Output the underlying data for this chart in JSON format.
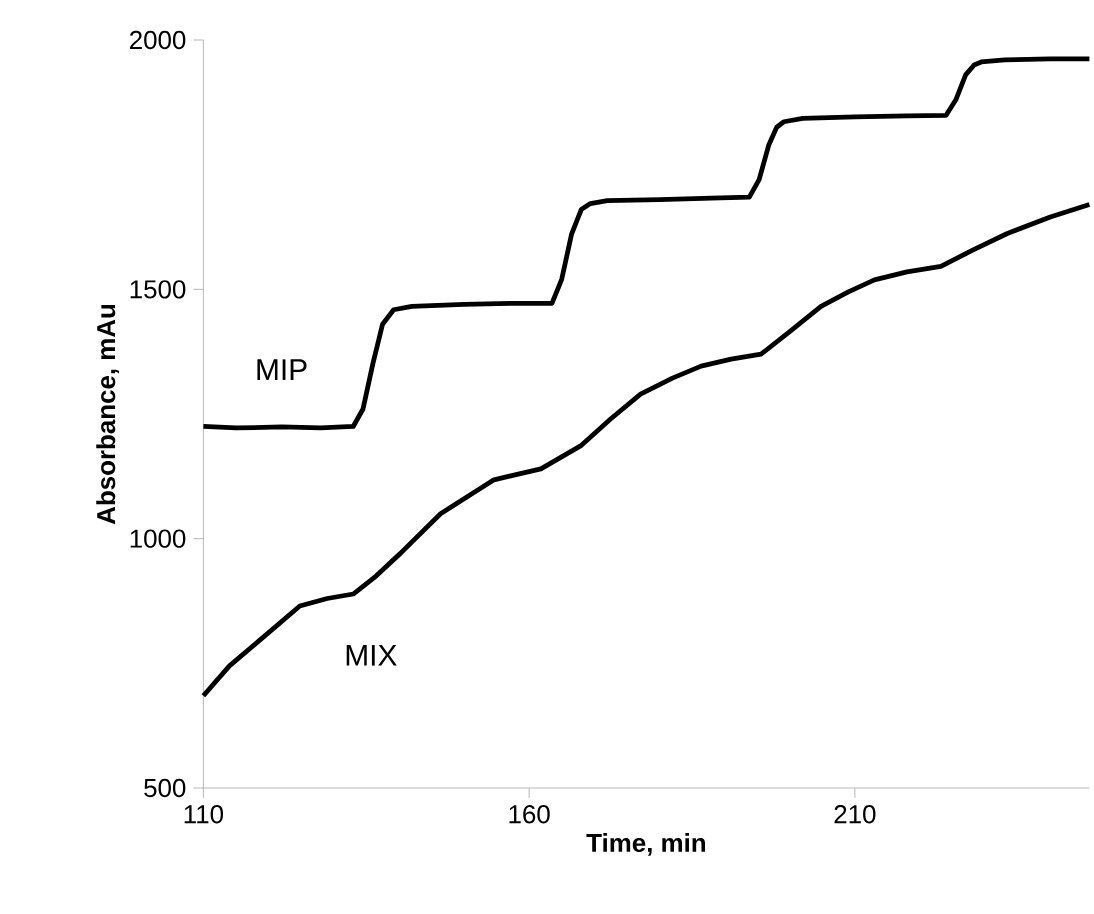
{
  "chart_data": {
    "type": "line",
    "xlabel": "Time, min",
    "ylabel": "Absorbance, mAu",
    "xlim": [
      110,
      246
    ],
    "ylim": [
      500,
      2000
    ],
    "xticks": [
      110,
      160,
      210
    ],
    "yticks": [
      500,
      1000,
      1500,
      2000
    ],
    "grid": false,
    "legend": false,
    "marker": "none",
    "line_style": "solid",
    "series": [
      {
        "name": "MIP",
        "color": "#000000",
        "x": [
          110,
          115,
          122,
          128,
          133,
          134.5,
          136,
          137.5,
          139.2,
          142,
          150,
          158,
          163.5,
          165,
          166.5,
          168,
          169.4,
          172,
          180,
          188,
          193.8,
          195.3,
          196.8,
          198,
          199.1,
          202,
          210,
          218,
          224,
          225.5,
          227,
          228.3,
          229.4,
          233,
          240,
          246
        ],
        "values": [
          1225,
          1222,
          1224,
          1222,
          1225,
          1260,
          1350,
          1430,
          1459,
          1466,
          1470,
          1472,
          1472,
          1520,
          1610,
          1660,
          1672,
          1678,
          1680,
          1683,
          1685,
          1720,
          1790,
          1825,
          1836,
          1843,
          1846,
          1848,
          1849,
          1880,
          1930,
          1950,
          1956,
          1960,
          1962,
          1962
        ]
      },
      {
        "name": "MIX",
        "color": "#000000",
        "x": [
          110,
          114,
          118.7,
          124.8,
          129,
          133,
          136.5,
          140.2,
          146.4,
          154.6,
          161.8,
          167.9,
          172.5,
          177.1,
          182,
          186.4,
          191,
          195.6,
          200,
          204.8,
          209,
          213,
          218,
          223.2,
          228,
          233.4,
          240,
          246
        ],
        "values": [
          685,
          745,
          797,
          865,
          880,
          889,
          925,
          970,
          1050,
          1118,
          1140,
          1186,
          1240,
          1290,
          1322,
          1346,
          1360,
          1370,
          1415,
          1466,
          1495,
          1519,
          1535,
          1546,
          1578,
          1612,
          1645,
          1670
        ]
      }
    ]
  }
}
